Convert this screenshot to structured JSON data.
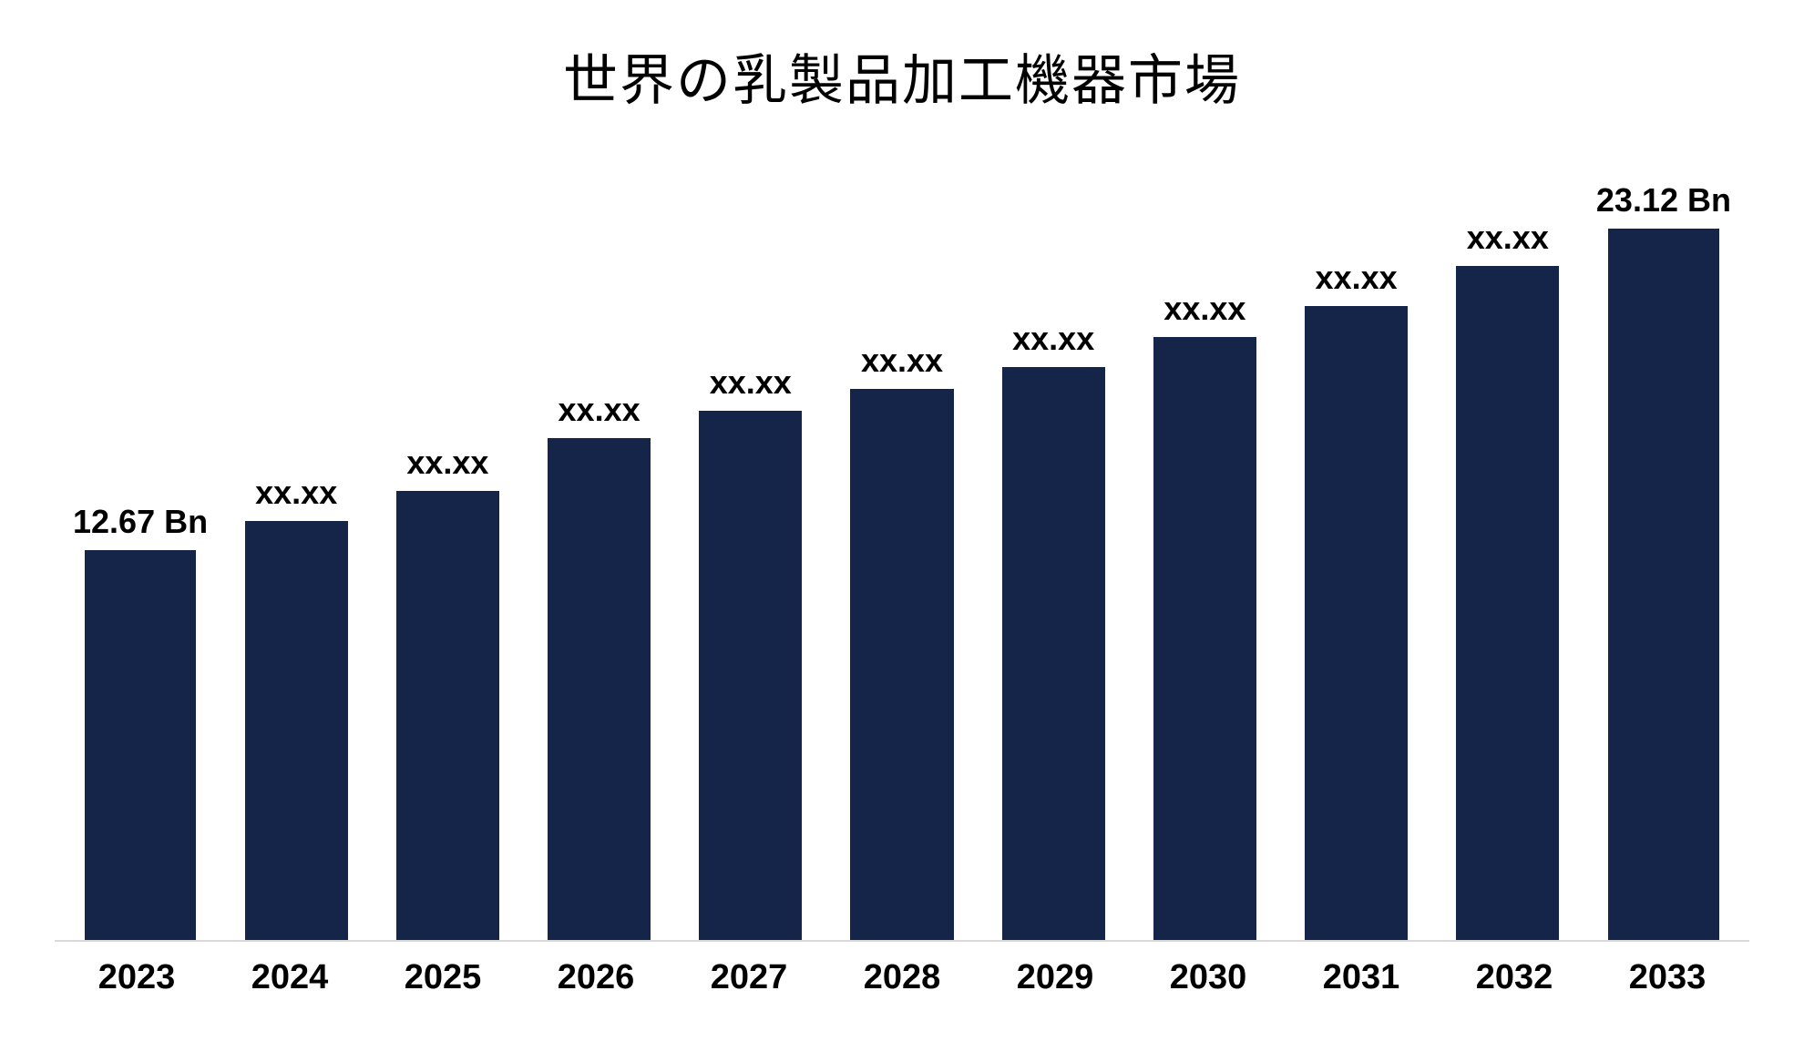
{
  "chart": {
    "type": "bar",
    "title": "世界の乳製品加工機器市場",
    "title_fontsize": 60,
    "title_font": "serif",
    "background_color": "#ffffff",
    "bar_color": "#152449",
    "axis_line_color": "#d9d9d9",
    "x_label_fontsize": 38,
    "x_label_weight": 700,
    "data_label_fontsize": 36,
    "data_label_weight": 700,
    "endpoint_label_weight": 800,
    "ylim": [
      0,
      25
    ],
    "bar_width_ratio": 0.82,
    "categories": [
      "2023",
      "2024",
      "2025",
      "2026",
      "2027",
      "2028",
      "2029",
      "2030",
      "2031",
      "2032",
      "2033"
    ],
    "values": [
      12.67,
      13.6,
      14.6,
      16.3,
      17.2,
      17.9,
      18.6,
      19.6,
      20.6,
      21.9,
      23.12
    ],
    "data_labels": [
      "12.67 Bn",
      "xx.xx",
      "xx.xx",
      "xx.xx",
      "xx.xx",
      "xx.xx",
      "xx.xx",
      "xx.xx",
      "xx.xx",
      "xx.xx",
      "23.12 Bn"
    ],
    "endpoint_bold": [
      true,
      false,
      false,
      false,
      false,
      false,
      false,
      false,
      false,
      false,
      true
    ]
  }
}
